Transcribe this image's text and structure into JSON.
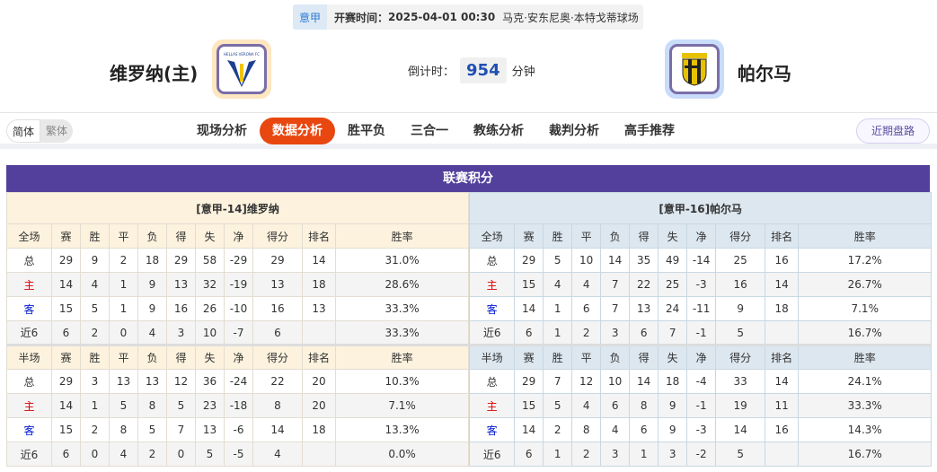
{
  "match": {
    "league": "意甲",
    "kickoff_label": "开赛时间：",
    "kickoff": "2025-04-01 00:30",
    "venue": "马克·安东尼奥·本特戈蒂球场",
    "home_team": "维罗纳(主)",
    "away_team": "帕尔马",
    "countdown_label": "倒计时：",
    "countdown": "954",
    "countdown_unit": "分钟",
    "home_logo_text": "HELLAS VERONA FC",
    "away_logo_text": "PARMA CALCIO"
  },
  "nav": {
    "lang": [
      "简体",
      "繁体"
    ],
    "tabs": [
      "现场分析",
      "数据分析",
      "胜平负",
      "三合一",
      "教练分析",
      "裁判分析",
      "高手推荐"
    ],
    "active_tab": "数据分析",
    "recent_button": "近期盘路"
  },
  "colors": {
    "accent": "#e8470f",
    "section_header": "#52409c",
    "home": "#dd0000",
    "away": "#0018d0"
  },
  "standings": {
    "title": "联赛积分",
    "headers_full": [
      "全场",
      "赛",
      "胜",
      "平",
      "负",
      "得",
      "失",
      "净",
      "得分",
      "排名",
      "胜率"
    ],
    "headers_half": [
      "半场",
      "赛",
      "胜",
      "平",
      "负",
      "得",
      "失",
      "净",
      "得分",
      "排名",
      "胜率"
    ],
    "home": {
      "title": "[意甲-14]维罗纳",
      "full": [
        [
          "总",
          "29",
          "9",
          "2",
          "18",
          "29",
          "58",
          "-29",
          "29",
          "14",
          "31.0%"
        ],
        [
          "主",
          "14",
          "4",
          "1",
          "9",
          "13",
          "32",
          "-19",
          "13",
          "18",
          "28.6%"
        ],
        [
          "客",
          "15",
          "5",
          "1",
          "9",
          "16",
          "26",
          "-10",
          "16",
          "13",
          "33.3%"
        ],
        [
          "近6",
          "6",
          "2",
          "0",
          "4",
          "3",
          "10",
          "-7",
          "6",
          "",
          "33.3%"
        ]
      ],
      "half": [
        [
          "总",
          "29",
          "3",
          "13",
          "13",
          "12",
          "36",
          "-24",
          "22",
          "20",
          "10.3%"
        ],
        [
          "主",
          "14",
          "1",
          "5",
          "8",
          "5",
          "23",
          "-18",
          "8",
          "20",
          "7.1%"
        ],
        [
          "客",
          "15",
          "2",
          "8",
          "5",
          "7",
          "13",
          "-6",
          "14",
          "18",
          "13.3%"
        ],
        [
          "近6",
          "6",
          "0",
          "4",
          "2",
          "0",
          "5",
          "-5",
          "4",
          "",
          "0.0%"
        ]
      ]
    },
    "away": {
      "title": "[意甲-16]帕尔马",
      "full": [
        [
          "总",
          "29",
          "5",
          "10",
          "14",
          "35",
          "49",
          "-14",
          "25",
          "16",
          "17.2%"
        ],
        [
          "主",
          "15",
          "4",
          "4",
          "7",
          "22",
          "25",
          "-3",
          "16",
          "14",
          "26.7%"
        ],
        [
          "客",
          "14",
          "1",
          "6",
          "7",
          "13",
          "24",
          "-11",
          "9",
          "18",
          "7.1%"
        ],
        [
          "近6",
          "6",
          "1",
          "2",
          "3",
          "6",
          "7",
          "-1",
          "5",
          "",
          "16.7%"
        ]
      ],
      "half": [
        [
          "总",
          "29",
          "7",
          "12",
          "10",
          "14",
          "18",
          "-4",
          "33",
          "14",
          "24.1%"
        ],
        [
          "主",
          "15",
          "5",
          "4",
          "6",
          "8",
          "9",
          "-1",
          "19",
          "11",
          "33.3%"
        ],
        [
          "客",
          "14",
          "2",
          "8",
          "4",
          "6",
          "9",
          "-3",
          "14",
          "16",
          "14.3%"
        ],
        [
          "近6",
          "6",
          "1",
          "2",
          "3",
          "1",
          "3",
          "-2",
          "5",
          "",
          "16.7%"
        ]
      ]
    }
  }
}
